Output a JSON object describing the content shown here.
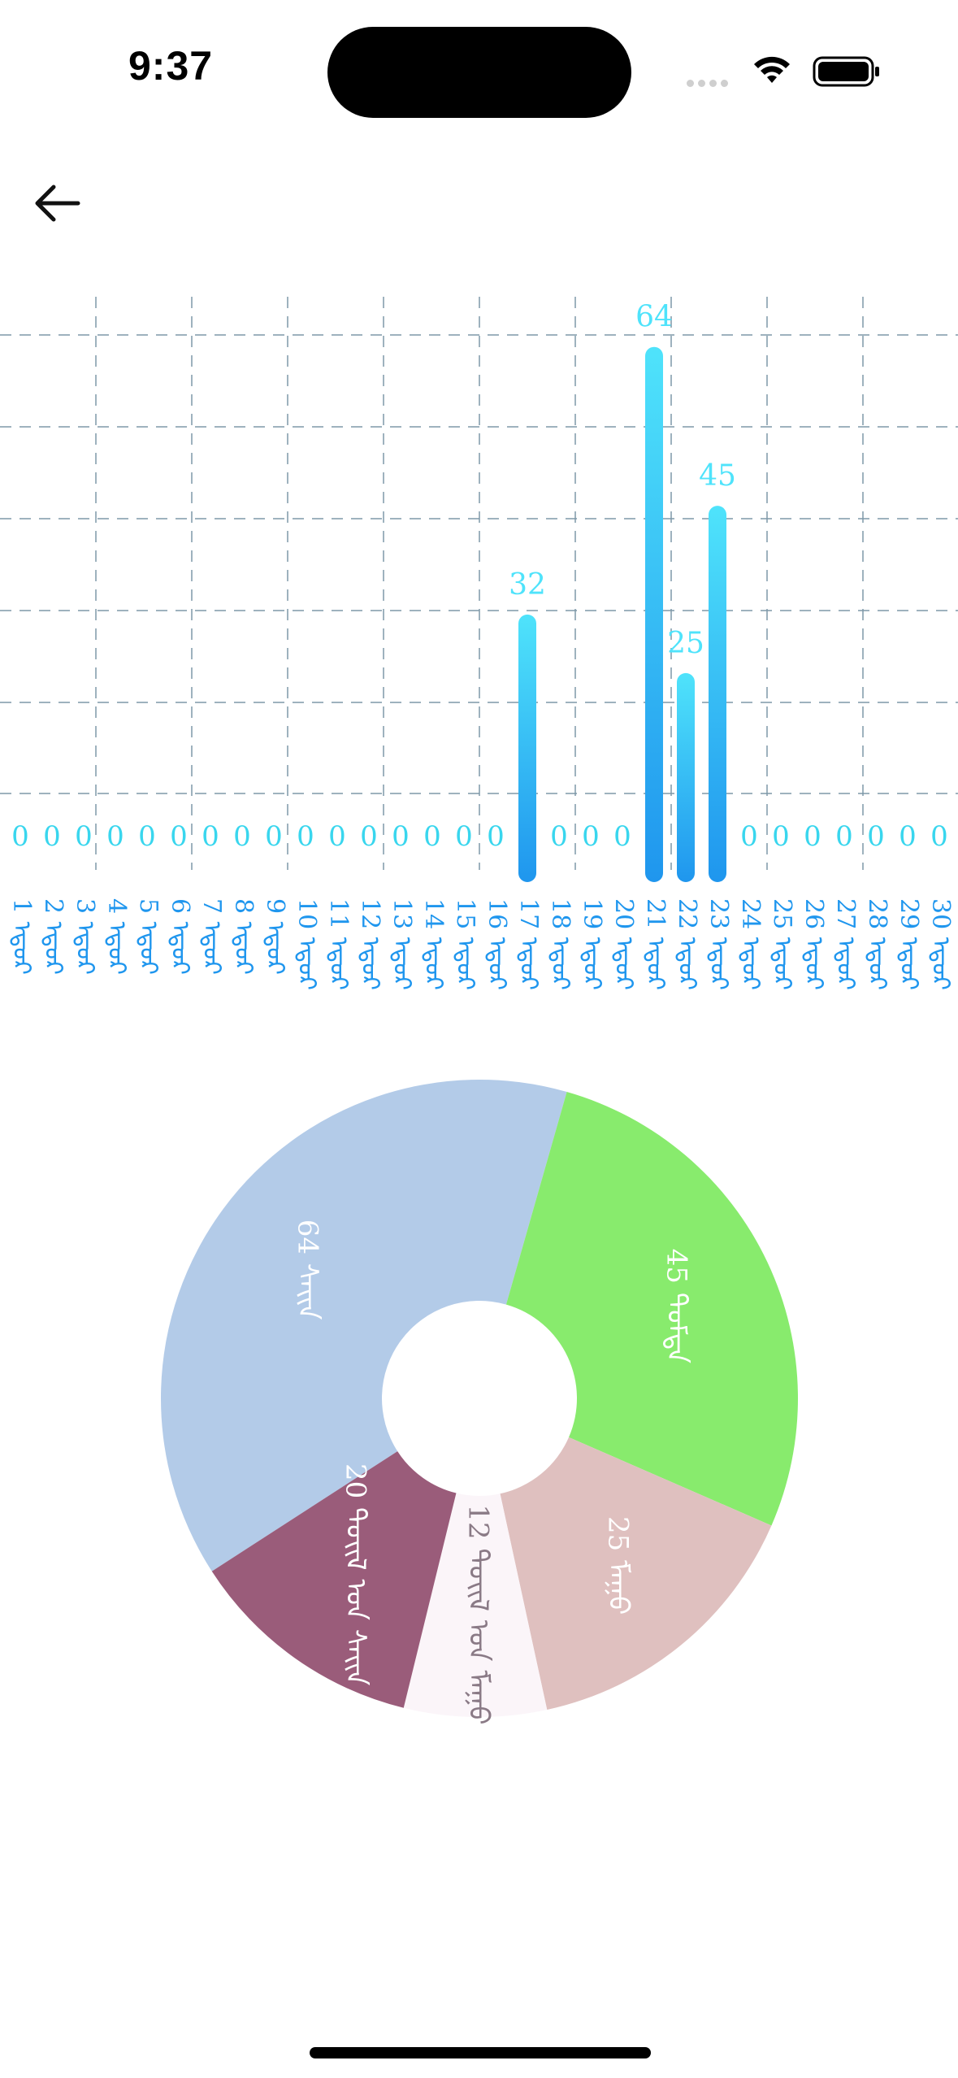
{
  "status_bar": {
    "time": "9:37"
  },
  "chart_data": [
    {
      "type": "bar",
      "categories": [
        "1 ᠡᠳᠦᠷ",
        "2 ᠡᠳᠦᠷ",
        "3 ᠡᠳᠦᠷ",
        "4 ᠡᠳᠦᠷ",
        "5 ᠡᠳᠦᠷ",
        "6 ᠡᠳᠦᠷ",
        "7 ᠡᠳᠦᠷ",
        "8 ᠡᠳᠦᠷ",
        "9 ᠡᠳᠦᠷ",
        "10 ᠡᠳᠦᠷ",
        "11 ᠡᠳᠦᠷ",
        "12 ᠡᠳᠦᠷ",
        "13 ᠡᠳᠦᠷ",
        "14 ᠡᠳᠦᠷ",
        "15 ᠡᠳᠦᠷ",
        "16 ᠡᠳᠦᠷ",
        "17 ᠡᠳᠦᠷ",
        "18 ᠡᠳᠦᠷ",
        "19 ᠡᠳᠦᠷ",
        "20 ᠡᠳᠦᠷ",
        "21 ᠡᠳᠦᠷ",
        "22 ᠡᠳᠦᠷ",
        "23 ᠡᠳᠦᠷ",
        "24 ᠡᠳᠦᠷ",
        "25 ᠡᠳᠦᠷ",
        "26 ᠡᠳᠦᠷ",
        "27 ᠡᠳᠦᠷ",
        "28 ᠡᠳᠦᠷ",
        "29 ᠡᠳᠦᠷ",
        "30 ᠡᠳᠦᠷ"
      ],
      "values": [
        0,
        0,
        0,
        0,
        0,
        0,
        0,
        0,
        0,
        0,
        0,
        0,
        0,
        0,
        0,
        0,
        32,
        0,
        0,
        0,
        64,
        25,
        45,
        0,
        0,
        0,
        0,
        0,
        0,
        0
      ],
      "ylim": [
        0,
        70
      ],
      "grid": true,
      "colors": {
        "bar_top": "#4fe3fb",
        "bar_bottom": "#1f96ee",
        "value_label": "#4fe3fb",
        "zero_label": "#39d6ee",
        "axis_label": "#1f96ee",
        "grid": "#7f98a8"
      }
    },
    {
      "type": "pie",
      "slices": [
        {
          "label": "64 ᠰᠠᠢᠨ",
          "value": 64,
          "color": "#b3cbe8"
        },
        {
          "label": "45 ᠳᠤᠮᠳᠠ",
          "value": 45,
          "color": "#88eb6d"
        },
        {
          "label": "25 ᠮᠠᠭᠤ",
          "value": 25,
          "color": "#dfc0bf"
        },
        {
          "label": "12 ᠲᠤᠢᠯ ᠤᠨ ᠮᠠᠭᠤ",
          "value": 12,
          "color": "#fbf5f9"
        },
        {
          "label": "20 ᠲᠤᠢᠯ ᠤᠨ ᠰᠠᠢᠨ",
          "value": 20,
          "color": "#9a5c7a"
        }
      ]
    }
  ]
}
